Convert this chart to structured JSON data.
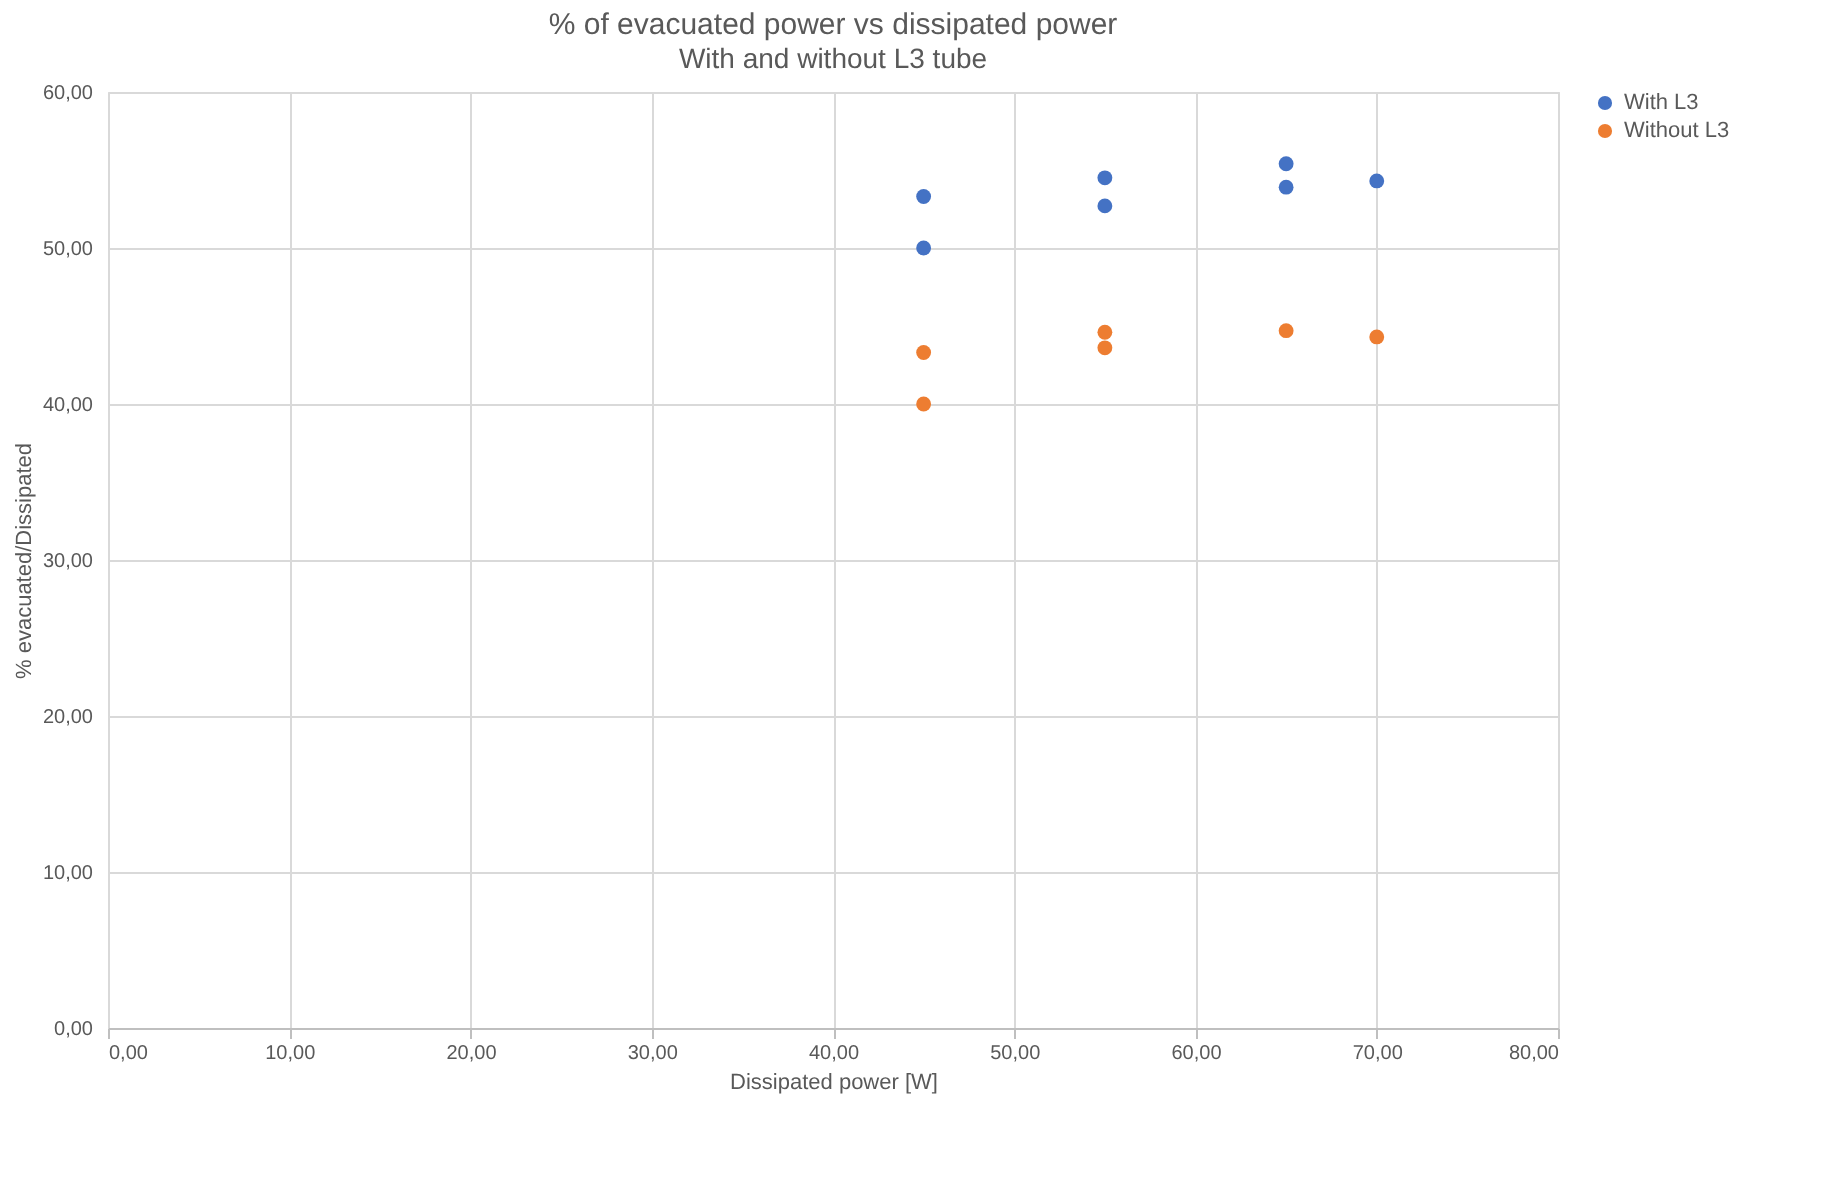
{
  "chart_data": {
    "type": "scatter",
    "title": "% of evacuated power vs dissipated power",
    "subtitle": "With and without L3 tube",
    "xlabel": "Dissipated power [W]",
    "ylabel": "% evacuated/Dissipated",
    "series": [
      {
        "name": "With L3",
        "color": "#4472c4",
        "x": [
          45,
          45,
          55,
          55,
          65,
          65,
          70
        ],
        "values": [
          53.3,
          50.0,
          54.5,
          52.7,
          55.4,
          53.9,
          54.3
        ]
      },
      {
        "name": "Without L3",
        "color": "#ed7d31",
        "x": [
          45,
          45,
          55,
          55,
          65,
          70
        ],
        "values": [
          43.3,
          40.0,
          44.6,
          43.6,
          44.7,
          44.3
        ]
      }
    ],
    "xlim": [
      0,
      80
    ],
    "xticks": [
      {
        "value": 0,
        "label": "0,00"
      },
      {
        "value": 10,
        "label": "10,00"
      },
      {
        "value": 20,
        "label": "20,00"
      },
      {
        "value": 30,
        "label": "30,00"
      },
      {
        "value": 40,
        "label": "40,00"
      },
      {
        "value": 50,
        "label": "50,00"
      },
      {
        "value": 60,
        "label": "60,00"
      },
      {
        "value": 70,
        "label": "70,00"
      },
      {
        "value": 80,
        "label": "80,00"
      }
    ],
    "ylim": [
      0,
      60
    ],
    "yticks": [
      {
        "value": 0,
        "label": "0,00"
      },
      {
        "value": 10,
        "label": "10,00"
      },
      {
        "value": 20,
        "label": "20,00"
      },
      {
        "value": 30,
        "label": "30,00"
      },
      {
        "value": 40,
        "label": "40,00"
      },
      {
        "value": 50,
        "label": "50,00"
      },
      {
        "value": 60,
        "label": "60,00"
      }
    ],
    "grid": true,
    "legend": "right",
    "marker": "circle"
  }
}
